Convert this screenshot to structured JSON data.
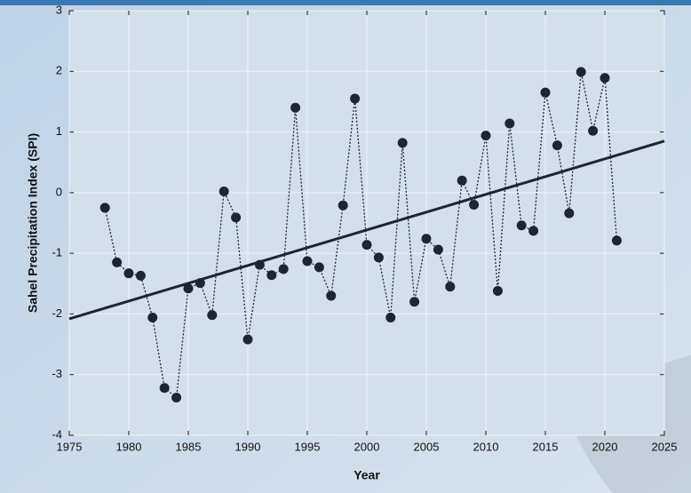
{
  "chart_data": {
    "type": "scatter",
    "x_label": "Year",
    "y_label": "Sahel Precipitation Index (SPI)",
    "x": [
      1978,
      1979,
      1980,
      1981,
      1982,
      1983,
      1984,
      1985,
      1986,
      1987,
      1988,
      1989,
      1990,
      1991,
      1992,
      1993,
      1994,
      1995,
      1996,
      1997,
      1998,
      1999,
      2000,
      2001,
      2002,
      2003,
      2004,
      2005,
      2006,
      2007,
      2008,
      2009,
      2010,
      2011,
      2012,
      2013,
      2014,
      2015,
      2016,
      2017,
      2018,
      2019,
      2020,
      2021
    ],
    "values": [
      -0.25,
      -1.15,
      -1.33,
      -1.37,
      -2.06,
      -3.22,
      -3.38,
      -1.58,
      -1.49,
      -2.02,
      0.02,
      -0.41,
      -2.42,
      -1.19,
      -1.36,
      -1.26,
      1.4,
      -1.13,
      -1.23,
      -1.7,
      -0.21,
      1.55,
      -0.86,
      -1.07,
      -2.06,
      0.82,
      -1.8,
      -0.76,
      -0.94,
      -1.55,
      0.2,
      -0.2,
      0.94,
      -1.62,
      1.14,
      -0.54,
      -0.63,
      1.65,
      0.78,
      -0.34,
      1.99,
      1.02,
      1.89,
      -0.79
    ],
    "color": "#1c2533",
    "trend": {
      "x": [
        1975,
        2025
      ],
      "values": [
        -2.08,
        0.85
      ],
      "color": "#1c2533"
    },
    "xlim": [
      1975,
      2025
    ],
    "xticks": [
      1975,
      1980,
      1985,
      1990,
      1995,
      2000,
      2005,
      2010,
      2015,
      2020,
      2025
    ],
    "ylim": [
      -4,
      3
    ],
    "yticks": [
      -4,
      -3,
      -2,
      -1,
      0,
      1,
      2,
      3
    ],
    "grid": true
  }
}
